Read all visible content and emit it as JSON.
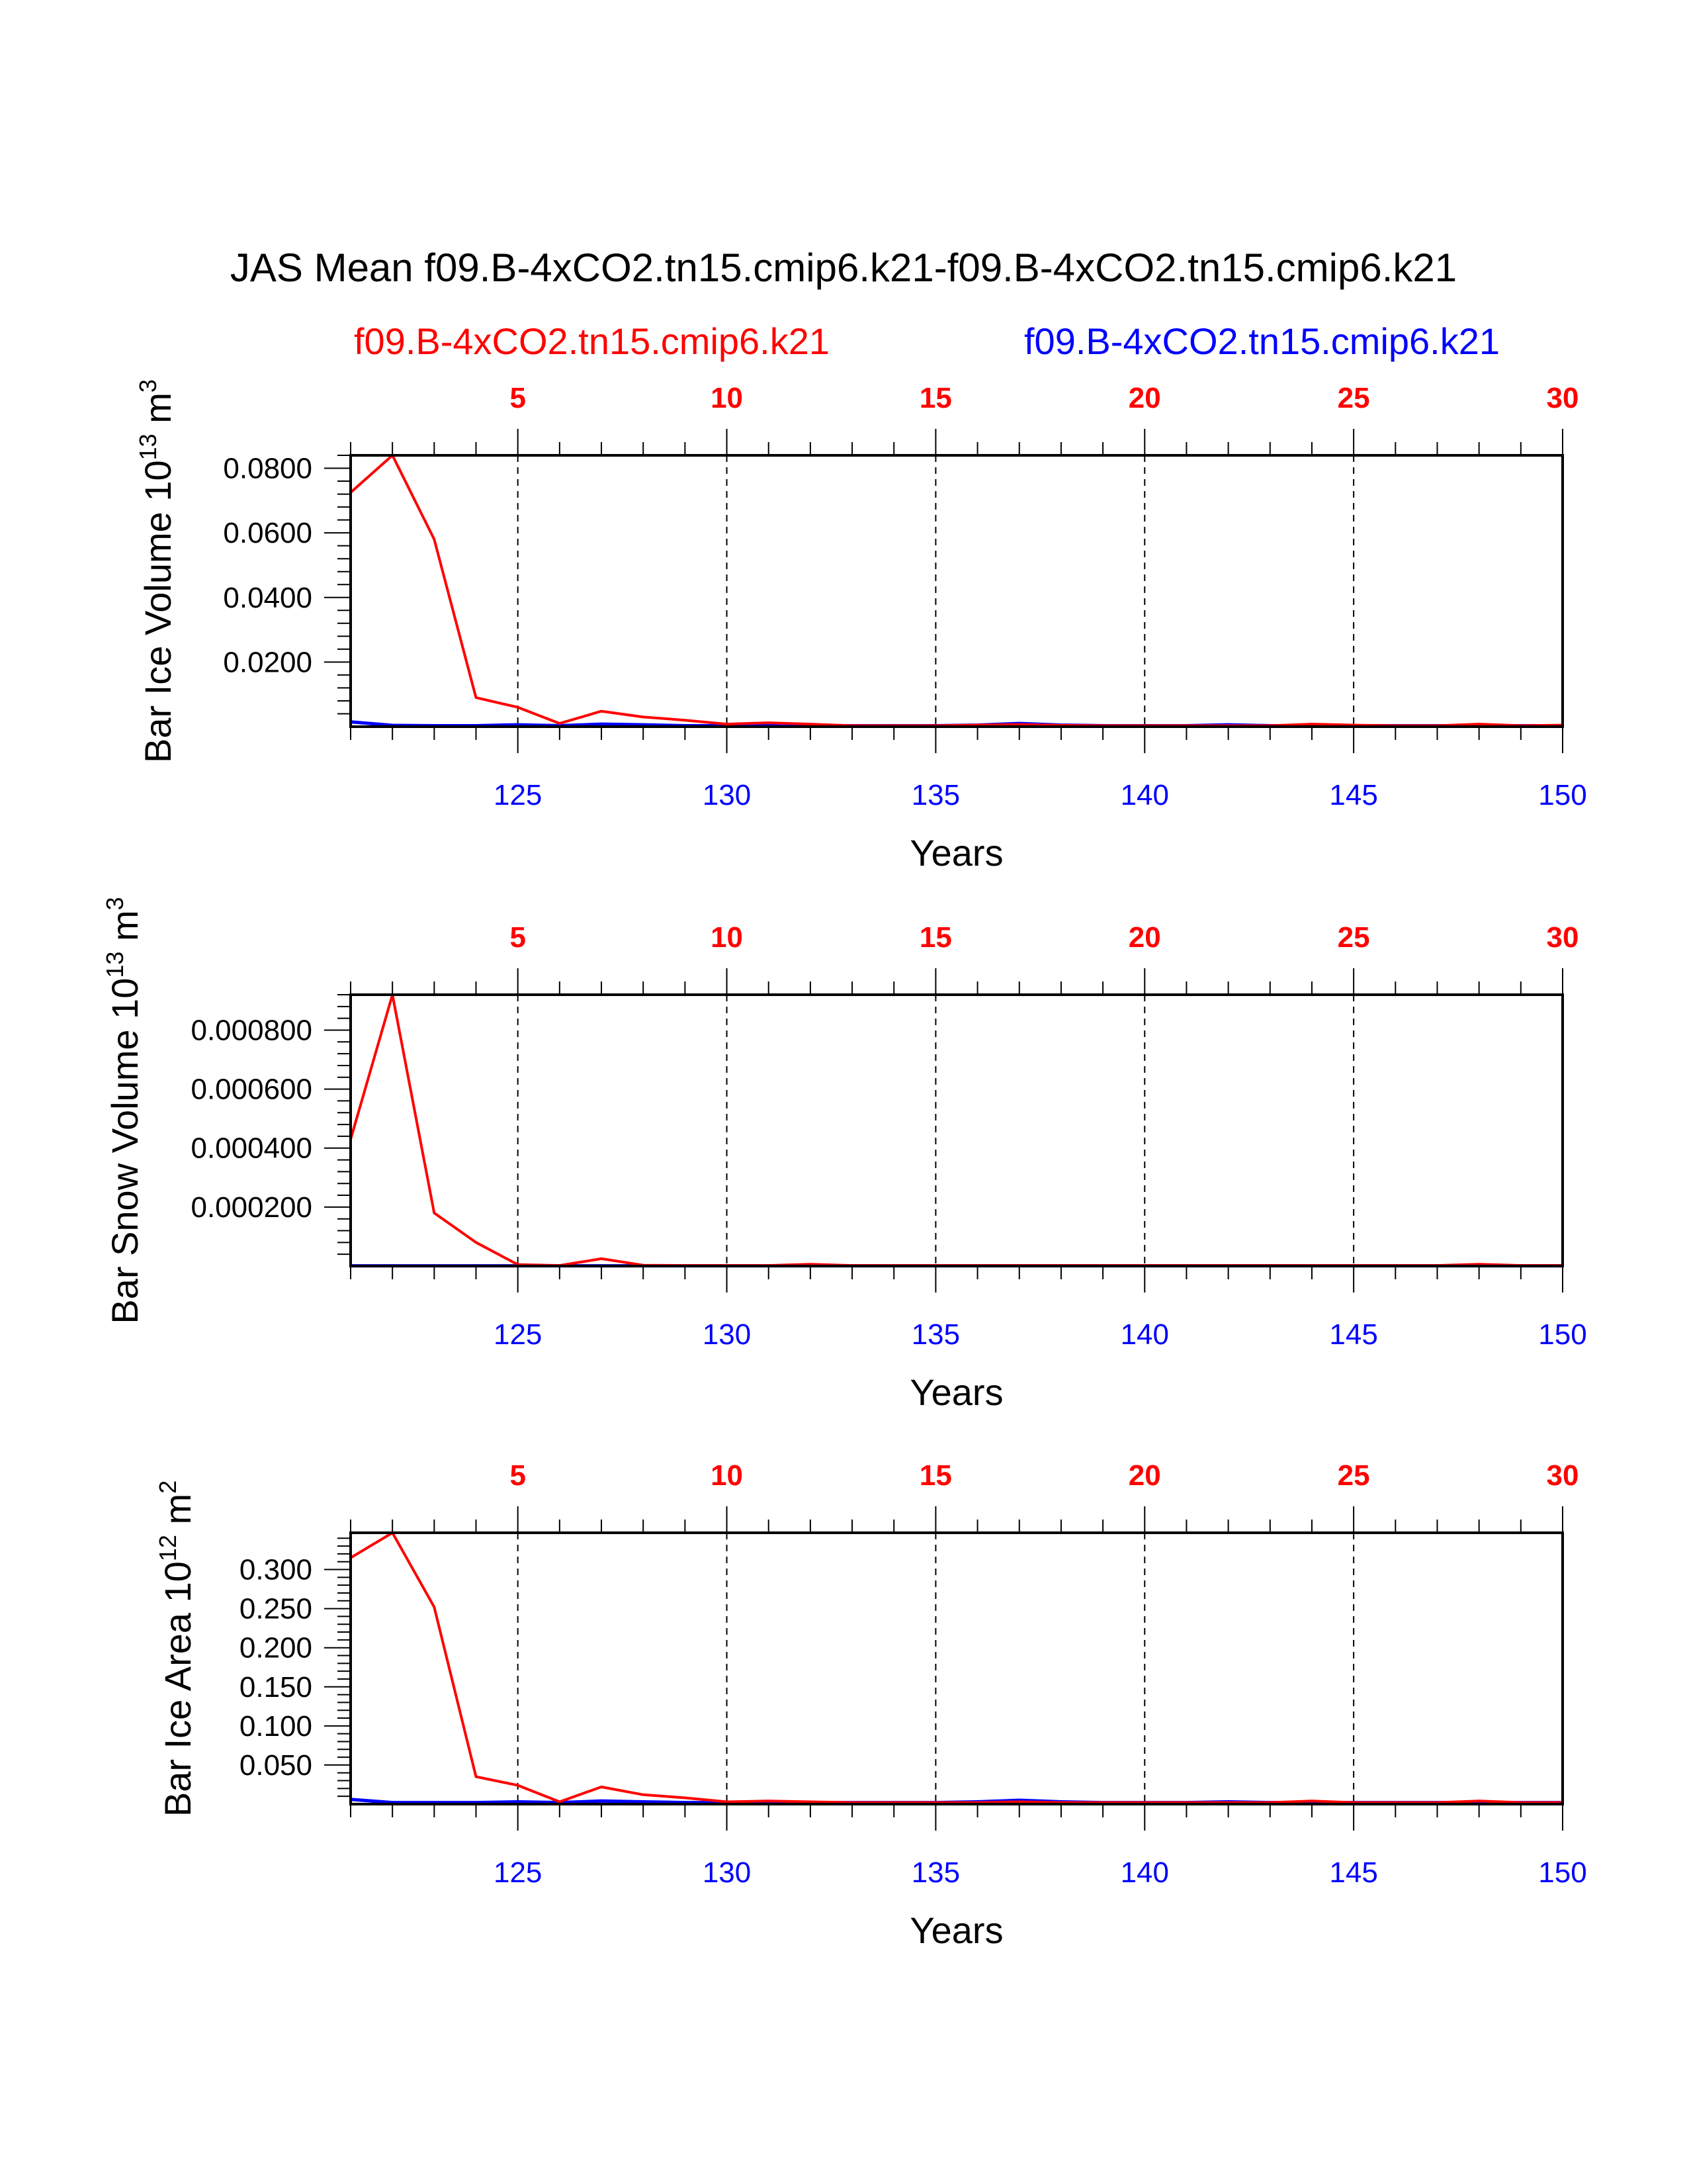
{
  "title": "JAS Mean f09.B-4xCO2.tn15.cmip6.k21-f09.B-4xCO2.tn15.cmip6.k21",
  "legend": {
    "left": {
      "label": "f09.B-4xCO2.tn15.cmip6.k21",
      "color": "#ff0000"
    },
    "right": {
      "label": "f09.B-4xCO2.tn15.cmip6.k21",
      "color": "#0000ff"
    }
  },
  "colors": {
    "case1": "#ff0000",
    "case2": "#0000ff",
    "axis": "#000000"
  },
  "chart_data": [
    {
      "type": "line",
      "ylabel": {
        "main": "Bar Ice Volume 10",
        "exp": "13",
        "unit": " m",
        "unitexp": "3"
      },
      "xlabel": "Years",
      "xlim": [
        121,
        150
      ],
      "x_ticks": [
        125,
        130,
        135,
        140,
        145,
        150
      ],
      "x_top_ticks": [
        5,
        10,
        15,
        20,
        25,
        30
      ],
      "ylim": [
        0,
        0.084
      ],
      "y_ticks": [
        0.02,
        0.04,
        0.06,
        0.08
      ],
      "y_tick_labels": [
        "0.0200",
        "0.0400",
        "0.0600",
        "0.0800"
      ],
      "y_minor_step": 0.004,
      "x": [
        121,
        122,
        123,
        124,
        125,
        126,
        127,
        128,
        129,
        130,
        131,
        132,
        133,
        134,
        135,
        136,
        137,
        138,
        139,
        140,
        141,
        142,
        143,
        144,
        145,
        146,
        147,
        148,
        149,
        150
      ],
      "series": [
        {
          "name": "f09.B-4xCO2.tn15.cmip6.k21 (red)",
          "color": "#ff0000",
          "values": [
            0.0725,
            0.084,
            0.058,
            0.009,
            0.006,
            0.001,
            0.0048,
            0.003,
            0.002,
            0.0008,
            0.0012,
            0.0008,
            0.0003,
            0.0003,
            0.0003,
            0.0005,
            0.0007,
            0.0004,
            0.0003,
            0.0003,
            0.0003,
            0.0003,
            0.0003,
            0.0008,
            0.0005,
            0.0003,
            0.0003,
            0.0008,
            0.0003,
            0.0005
          ]
        },
        {
          "name": "f09.B-4xCO2.tn15.cmip6.k21 (blue)",
          "color": "#0000ff",
          "values": [
            0.0015,
            0.0004,
            0.0003,
            0.0003,
            0.0006,
            0.0003,
            0.0008,
            0.0006,
            0.0003,
            0.0003,
            0.0003,
            0.0003,
            0.0003,
            0.0003,
            0.0003,
            0.0005,
            0.001,
            0.0005,
            0.0003,
            0.0003,
            0.0003,
            0.0006,
            0.0003,
            0.0003,
            0.0003,
            0.0003,
            0.0003,
            0.0003,
            0.0003,
            0.0003
          ]
        }
      ]
    },
    {
      "type": "line",
      "ylabel": {
        "main": "Bar Snow Volume 10",
        "exp": "13",
        "unit": " m",
        "unitexp": "3"
      },
      "xlabel": "Years",
      "xlim": [
        121,
        150
      ],
      "x_ticks": [
        125,
        130,
        135,
        140,
        145,
        150
      ],
      "x_top_ticks": [
        5,
        10,
        15,
        20,
        25,
        30
      ],
      "ylim": [
        0,
        0.00092
      ],
      "y_ticks": [
        0.0002,
        0.0004,
        0.0006,
        0.0008
      ],
      "y_tick_labels": [
        "0.000200",
        "0.000400",
        "0.000600",
        "0.000800"
      ],
      "y_minor_step": 4e-05,
      "x": [
        121,
        122,
        123,
        124,
        125,
        126,
        127,
        128,
        129,
        130,
        131,
        132,
        133,
        134,
        135,
        136,
        137,
        138,
        139,
        140,
        141,
        142,
        143,
        144,
        145,
        146,
        147,
        148,
        149,
        150
      ],
      "series": [
        {
          "name": "f09.B-4xCO2.tn15.cmip6.k21 (red)",
          "color": "#ff0000",
          "values": [
            0.00043,
            0.00092,
            0.00018,
            8e-05,
            5e-06,
            2e-06,
            2.5e-05,
            3e-06,
            2e-06,
            2e-06,
            2e-06,
            6e-06,
            2e-06,
            2e-06,
            2e-06,
            2e-06,
            2e-06,
            2e-06,
            2e-06,
            2e-06,
            2e-06,
            2e-06,
            2e-06,
            2e-06,
            2e-06,
            2e-06,
            2e-06,
            6e-06,
            2e-06,
            2e-06
          ]
        },
        {
          "name": "f09.B-4xCO2.tn15.cmip6.k21 (blue)",
          "color": "#0000ff",
          "values": [
            1e-06,
            1e-06,
            1e-06,
            1e-06,
            1e-06,
            1e-06,
            1e-06,
            1e-06,
            1e-06,
            1e-06,
            1e-06,
            1e-06,
            1e-06,
            1e-06,
            1e-06,
            1e-06,
            1e-06,
            1e-06,
            1e-06,
            1e-06,
            1e-06,
            1e-06,
            1e-06,
            1e-06,
            1e-06,
            1e-06,
            1e-06,
            1e-06,
            1e-06,
            1e-06
          ]
        }
      ]
    },
    {
      "type": "line",
      "ylabel": {
        "main": "Bar Ice Area 10",
        "exp": "12",
        "unit": " m",
        "unitexp": "2"
      },
      "xlabel": "Years",
      "xlim": [
        121,
        150
      ],
      "x_ticks": [
        125,
        130,
        135,
        140,
        145,
        150
      ],
      "x_top_ticks": [
        5,
        10,
        15,
        20,
        25,
        30
      ],
      "ylim": [
        0,
        0.347
      ],
      "y_ticks": [
        0.05,
        0.1,
        0.15,
        0.2,
        0.25,
        0.3
      ],
      "y_tick_labels": [
        "0.050",
        "0.100",
        "0.150",
        "0.200",
        "0.250",
        "0.300"
      ],
      "y_minor_step": 0.01,
      "x": [
        121,
        122,
        123,
        124,
        125,
        126,
        127,
        128,
        129,
        130,
        131,
        132,
        133,
        134,
        135,
        136,
        137,
        138,
        139,
        140,
        141,
        142,
        143,
        144,
        145,
        146,
        147,
        148,
        149,
        150
      ],
      "series": [
        {
          "name": "f09.B-4xCO2.tn15.cmip6.k21 (red)",
          "color": "#ff0000",
          "values": [
            0.315,
            0.347,
            0.252,
            0.035,
            0.024,
            0.003,
            0.022,
            0.012,
            0.008,
            0.003,
            0.004,
            0.003,
            0.002,
            0.002,
            0.002,
            0.002,
            0.003,
            0.002,
            0.002,
            0.002,
            0.002,
            0.002,
            0.002,
            0.004,
            0.002,
            0.002,
            0.002,
            0.004,
            0.002,
            0.002
          ]
        },
        {
          "name": "f09.B-4xCO2.tn15.cmip6.k21 (blue)",
          "color": "#0000ff",
          "values": [
            0.006,
            0.002,
            0.002,
            0.002,
            0.003,
            0.002,
            0.004,
            0.003,
            0.002,
            0.002,
            0.002,
            0.002,
            0.002,
            0.002,
            0.002,
            0.003,
            0.005,
            0.003,
            0.002,
            0.002,
            0.002,
            0.003,
            0.002,
            0.002,
            0.002,
            0.002,
            0.002,
            0.002,
            0.002,
            0.002
          ]
        }
      ]
    }
  ]
}
